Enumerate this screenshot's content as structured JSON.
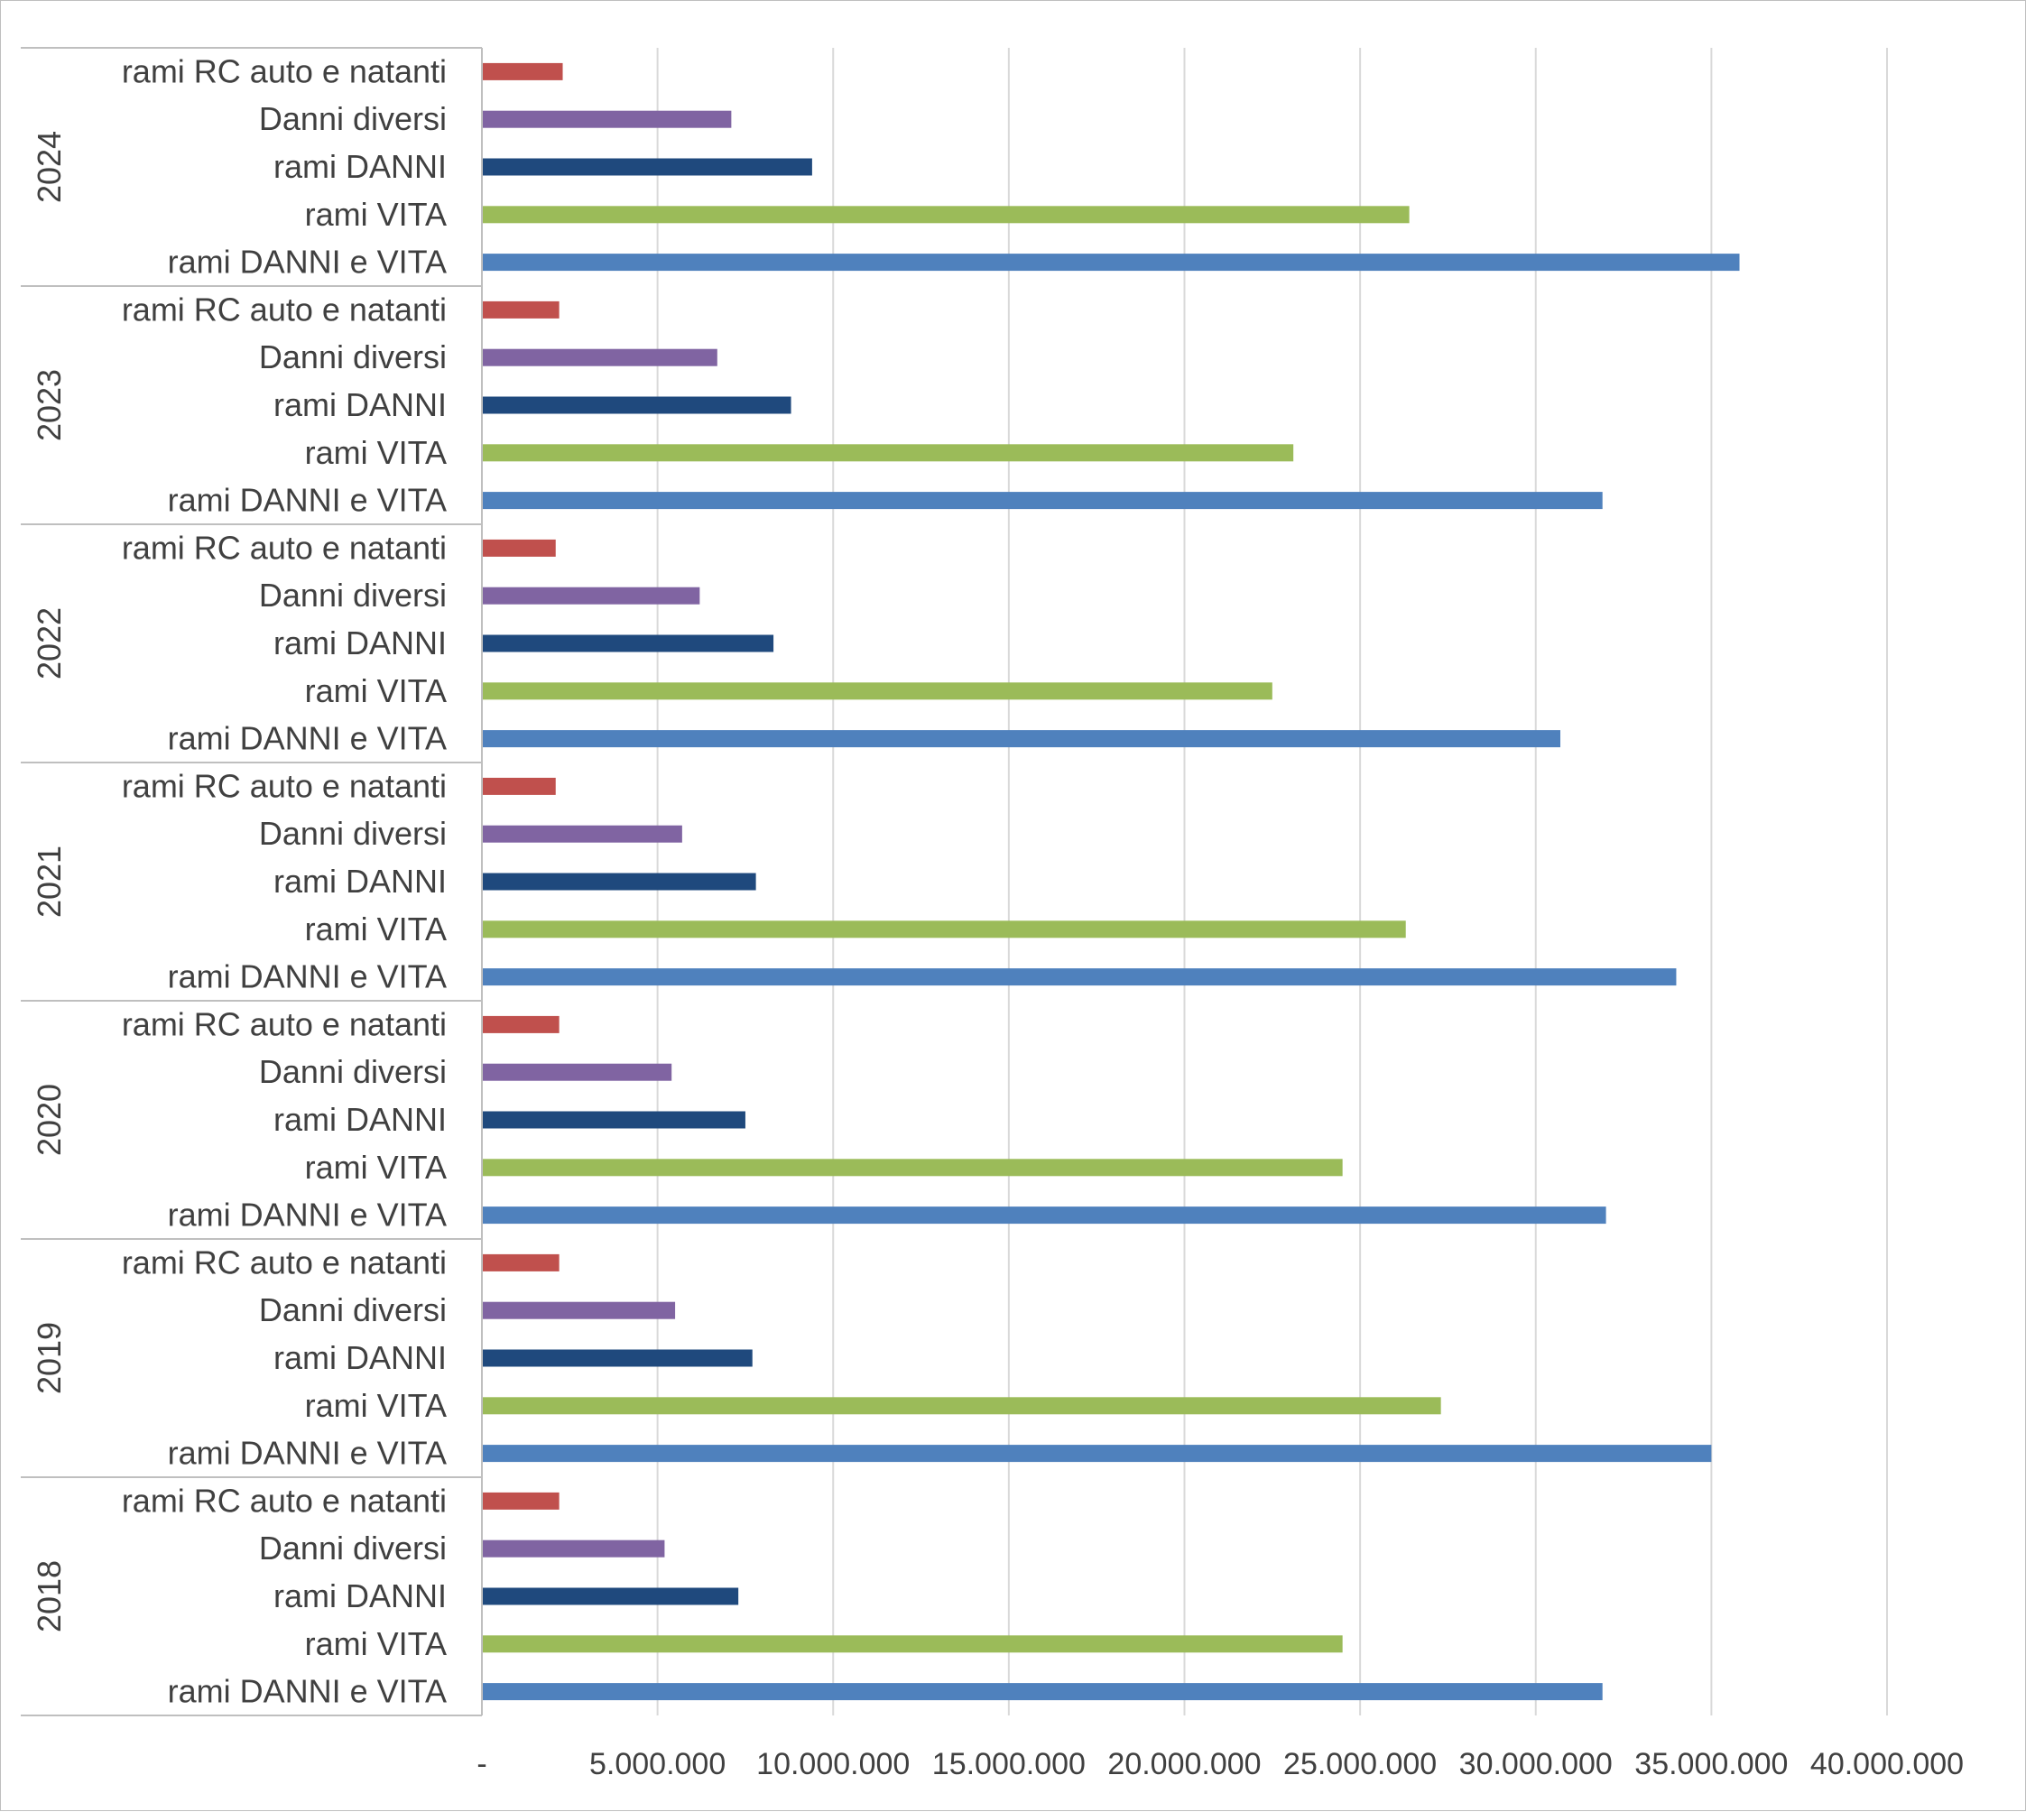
{
  "chart_data": {
    "type": "bar",
    "orientation": "horizontal",
    "title": "",
    "xlabel": "",
    "ylabel": "",
    "xlim": [
      0,
      40000000
    ],
    "x_ticks": [
      0,
      5000000,
      10000000,
      15000000,
      20000000,
      25000000,
      30000000,
      35000000,
      40000000
    ],
    "x_tick_labels": [
      "-",
      "5.000.000",
      "10.000.000",
      "15.000.000",
      "20.000.000",
      "25.000.000",
      "30.000.000",
      "35.000.000",
      "40.000.000"
    ],
    "grid": true,
    "legend": "none",
    "categories": [
      "rami RC auto e natanti",
      "Danni diversi",
      "rami DANNI",
      "rami VITA",
      "rami DANNI e VITA"
    ],
    "category_colors": [
      "#C0504D",
      "#8064A2",
      "#1F497D",
      "#9BBB59",
      "#4F81BD"
    ],
    "groups": [
      {
        "label": "2024",
        "values": [
          2300000,
          7100000,
          9400000,
          26400000,
          35800000
        ]
      },
      {
        "label": "2023",
        "values": [
          2200000,
          6700000,
          8800000,
          23100000,
          31900000
        ]
      },
      {
        "label": "2022",
        "values": [
          2100000,
          6200000,
          8300000,
          22500000,
          30700000
        ]
      },
      {
        "label": "2021",
        "values": [
          2100000,
          5700000,
          7800000,
          26300000,
          34000000
        ]
      },
      {
        "label": "2020",
        "values": [
          2200000,
          5400000,
          7500000,
          24500000,
          32000000
        ]
      },
      {
        "label": "2019",
        "values": [
          2200000,
          5500000,
          7700000,
          27300000,
          35000000
        ]
      },
      {
        "label": "2018",
        "values": [
          2200000,
          5200000,
          7300000,
          24500000,
          31900000
        ]
      }
    ]
  }
}
